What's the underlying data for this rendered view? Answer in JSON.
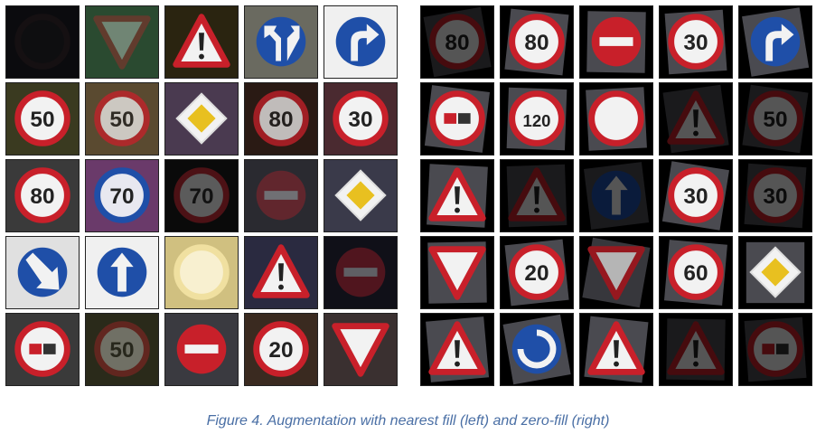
{
  "caption": "Figure 4. Augmentation with nearest fill (left) and zero-fill (right)",
  "colors": {
    "caption": "#4a6fa5",
    "red": "#c8202a",
    "blue": "#1f4fa8",
    "white": "#f2f2f2",
    "yellow": "#e8c020",
    "black": "#000000"
  },
  "left_grid": [
    {
      "type": "round",
      "text": "",
      "bg": "#0b0b0e",
      "ring": "#2a1a1a",
      "face": "#141416",
      "dim": true
    },
    {
      "type": "yield",
      "bg": "#2a4a30",
      "dim": true
    },
    {
      "type": "triangle",
      "bg": "#2a2410",
      "dim": false
    },
    {
      "type": "blue_arrow",
      "bg": "#6a6a60",
      "arrow": "left-up"
    },
    {
      "type": "blue_arrow",
      "bg": "#f0f0f0",
      "arrow": "right-turn"
    },
    {
      "type": "speed",
      "text": "50",
      "bg": "#3a3a20"
    },
    {
      "type": "speed",
      "text": "50",
      "bg": "#5a4a30",
      "faded": true
    },
    {
      "type": "diamond",
      "bg": "#4a3a50"
    },
    {
      "type": "speed",
      "text": "80",
      "bg": "#2a1a14",
      "faded": true
    },
    {
      "type": "speed",
      "text": "30",
      "bg": "#4a2a30"
    },
    {
      "type": "speed",
      "text": "80",
      "bg": "#3a3a3a"
    },
    {
      "type": "speed",
      "text": "70",
      "bg": "#6a3a6a",
      "blue": true
    },
    {
      "type": "speed",
      "text": "70",
      "bg": "#0a0a0a",
      "dim": true
    },
    {
      "type": "noentry",
      "bg": "#2a2a30",
      "dim": true
    },
    {
      "type": "diamond",
      "bg": "#3a3a4a"
    },
    {
      "type": "blue_arrow",
      "bg": "#e0e0e0",
      "arrow": "down-right"
    },
    {
      "type": "blue_arrow",
      "bg": "#f0f0f0",
      "arrow": "up"
    },
    {
      "type": "round",
      "text": "",
      "bg": "#d0c080",
      "ring": "#f0e0a0",
      "face": "#f8f0d0"
    },
    {
      "type": "triangle",
      "bg": "#2a2a40"
    },
    {
      "type": "noentry",
      "bg": "#101018",
      "dim": true
    },
    {
      "type": "noentry_sign",
      "bg": "#3a3a3a"
    },
    {
      "type": "speed",
      "text": "50",
      "bg": "#2a2a1a",
      "dim": true
    },
    {
      "type": "noentry",
      "bg": "#3a3a40"
    },
    {
      "type": "speed",
      "text": "20",
      "bg": "#3a2a20"
    },
    {
      "type": "yield",
      "bg": "#3a3030"
    }
  ],
  "right_grid": [
    {
      "type": "speed",
      "text": "80",
      "bg": "#000000",
      "dim": true
    },
    {
      "type": "speed",
      "text": "80",
      "bg": "#000000"
    },
    {
      "type": "noentry",
      "bg": "#000000"
    },
    {
      "type": "speed",
      "text": "30",
      "bg": "#000000"
    },
    {
      "type": "blue_arrow",
      "bg": "#000000",
      "arrow": "right-turn"
    },
    {
      "type": "noentry_sign",
      "bg": "#000000"
    },
    {
      "type": "speed",
      "text": "120",
      "bg": "#000000"
    },
    {
      "type": "round",
      "text": "",
      "bg": "#000000",
      "ring": "#c8202a",
      "face": "#f2f2f2"
    },
    {
      "type": "triangle",
      "bg": "#000000",
      "dim": true
    },
    {
      "type": "speed",
      "text": "50",
      "bg": "#000000",
      "dim": true
    },
    {
      "type": "triangle",
      "bg": "#000000"
    },
    {
      "type": "triangle",
      "bg": "#000000",
      "dim": true
    },
    {
      "type": "blue_arrow",
      "bg": "#000000",
      "arrow": "up",
      "dim": true
    },
    {
      "type": "speed",
      "text": "30",
      "bg": "#000000"
    },
    {
      "type": "speed",
      "text": "30",
      "bg": "#000000",
      "dim": true
    },
    {
      "type": "yield",
      "bg": "#000000"
    },
    {
      "type": "speed",
      "text": "20",
      "bg": "#000000"
    },
    {
      "type": "yield",
      "bg": "#000000",
      "faded": true
    },
    {
      "type": "speed",
      "text": "60",
      "bg": "#000000"
    },
    {
      "type": "diamond",
      "bg": "#000000"
    },
    {
      "type": "triangle",
      "bg": "#000000"
    },
    {
      "type": "blue_arrow",
      "bg": "#000000",
      "arrow": "roundabout"
    },
    {
      "type": "triangle",
      "bg": "#000000"
    },
    {
      "type": "triangle",
      "bg": "#000000",
      "dim": true
    },
    {
      "type": "noentry_sign",
      "bg": "#000000",
      "dim": true
    }
  ]
}
